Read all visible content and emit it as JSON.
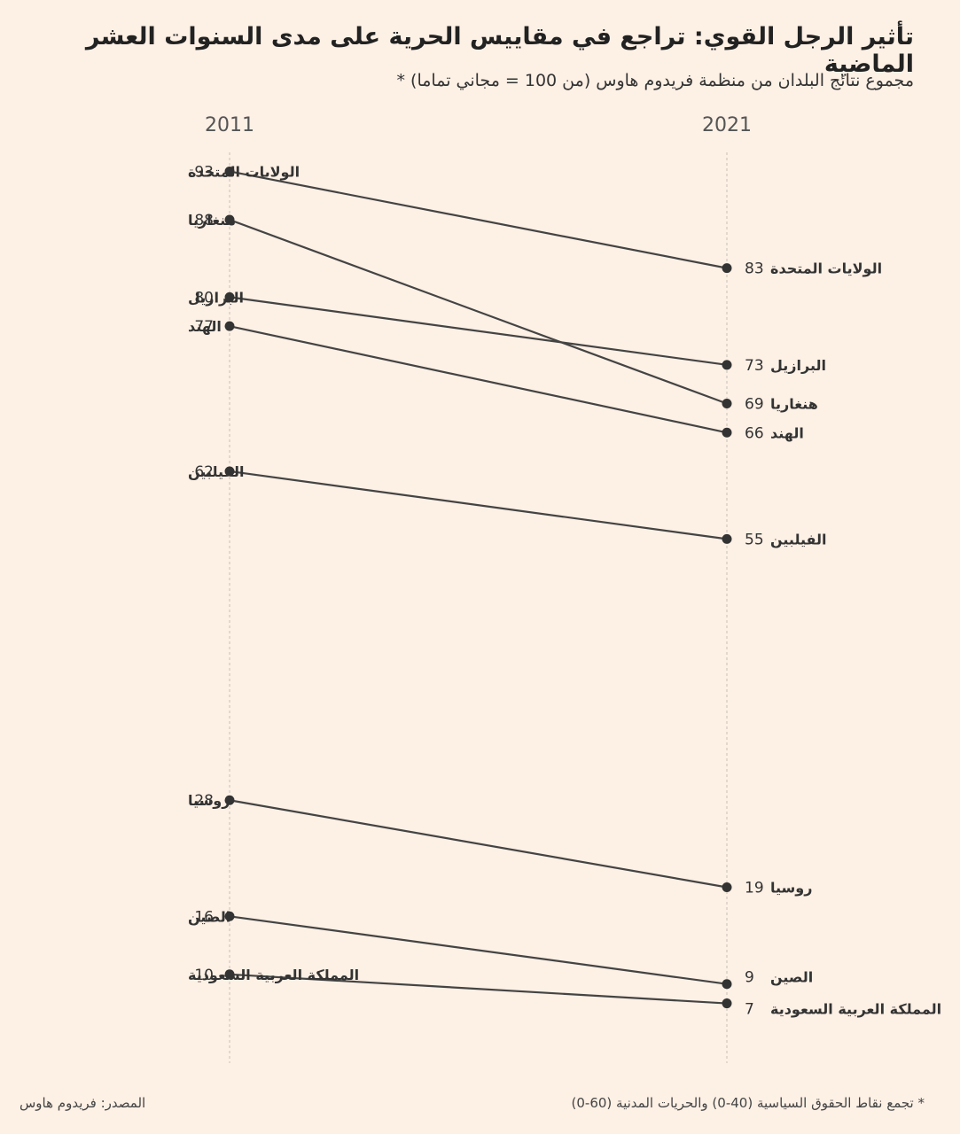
{
  "title": "تأثير الرجل القوي: تراجع في مقاييس الحرية على مدى السنوات العشر الماضية",
  "subtitle": "مجموع نتائج البلدان من منظمة فريدوم هاوس (من 100 = مجاني تماما) *",
  "footnote": "* تجمع نقاط الحقوق السياسية (40-0) والحريات المدنية (60-0)",
  "source": "المصدر: فريدوم هاوس",
  "chart_data": {
    "type": "line",
    "x": [
      "2011",
      "2021"
    ],
    "series": [
      {
        "name": "الولايات المتحدة",
        "values": [
          93,
          83
        ]
      },
      {
        "name": "هنغاريا",
        "values": [
          88,
          69
        ]
      },
      {
        "name": "البرازيل",
        "values": [
          80,
          73
        ]
      },
      {
        "name": "الهند",
        "values": [
          77,
          66
        ]
      },
      {
        "name": "الفيلبين",
        "values": [
          62,
          55
        ]
      },
      {
        "name": "روسيا",
        "values": [
          28,
          19
        ]
      },
      {
        "name": "الصين",
        "values": [
          16,
          9
        ]
      },
      {
        "name": "المملكة العربية السعودية",
        "values": [
          10,
          7
        ]
      }
    ],
    "grid": false,
    "colors": {
      "line": "#444444",
      "axis": "#d9d0c6"
    }
  }
}
